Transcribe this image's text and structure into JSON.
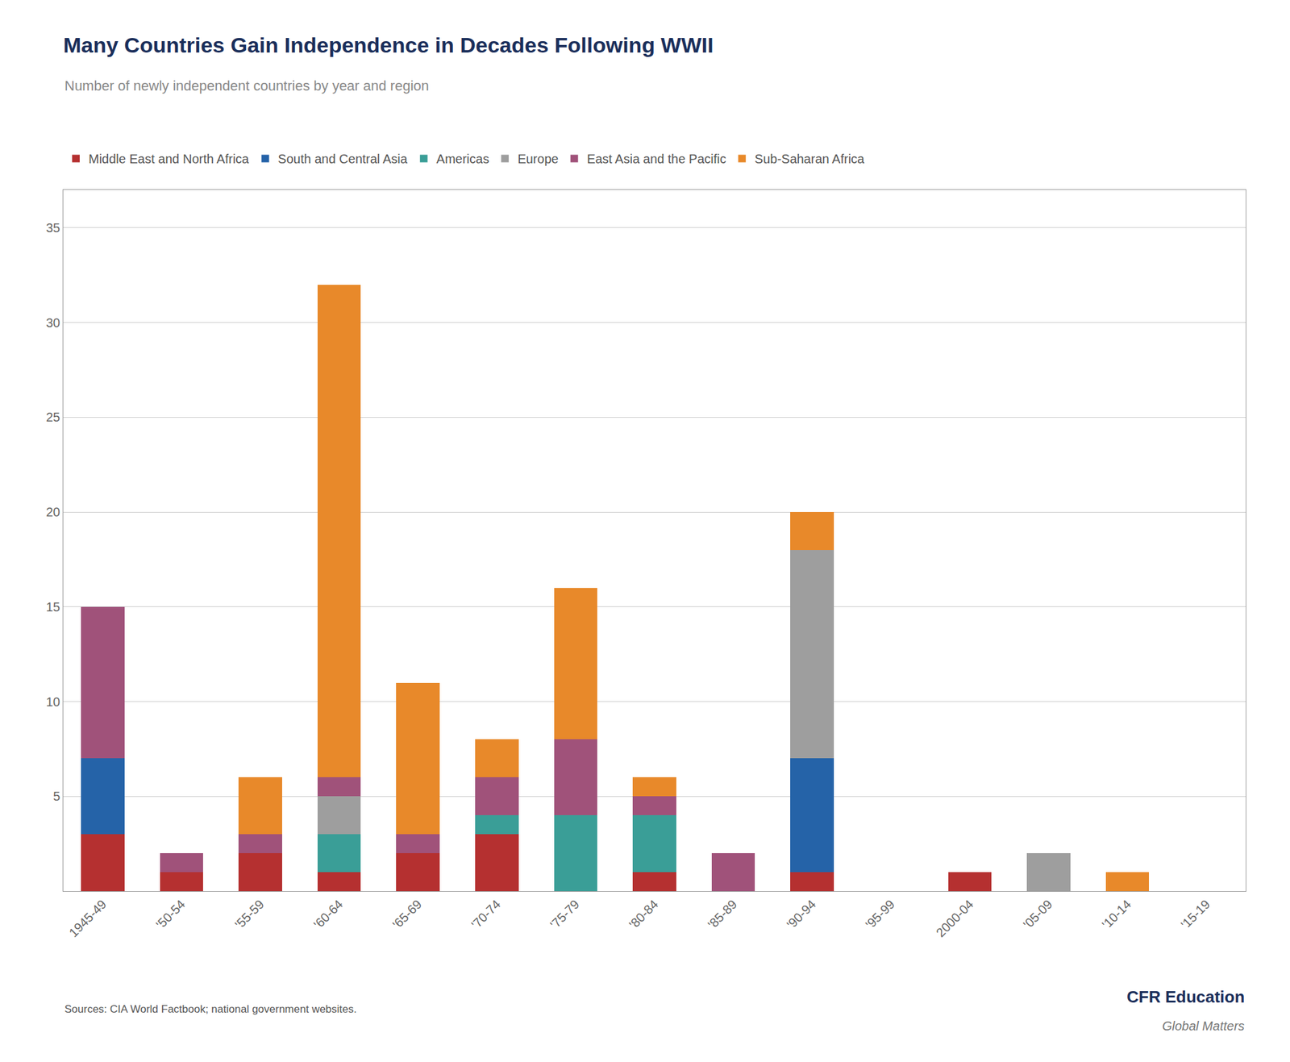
{
  "chart_data": {
    "type": "bar",
    "stacked": true,
    "title": "Many Countries Gain Independence in Decades Following WWII",
    "subtitle": "Number of newly independent countries by year and region",
    "categories": [
      "1945-49",
      "'50-54",
      "'55-59",
      "'60-64",
      "'65-69",
      "'70-74",
      "'75-79",
      "'80-84",
      "'85-89",
      "'90-94",
      "'95-99",
      "2000-04",
      "'05-09",
      "'10-14",
      "'15-19"
    ],
    "series": [
      {
        "name": "Middle East and North Africa",
        "color": "#b53030",
        "values": [
          3,
          1,
          2,
          1,
          2,
          3,
          0,
          1,
          0,
          1,
          0,
          1,
          0,
          0,
          0
        ]
      },
      {
        "name": "South and Central Asia",
        "color": "#2563a8",
        "values": [
          4,
          0,
          0,
          0,
          0,
          0,
          0,
          0,
          0,
          6,
          0,
          0,
          0,
          0,
          0
        ]
      },
      {
        "name": "Americas",
        "color": "#3a9e97",
        "values": [
          0,
          0,
          0,
          2,
          0,
          1,
          4,
          3,
          0,
          0,
          0,
          0,
          0,
          0,
          0
        ]
      },
      {
        "name": "Europe",
        "color": "#9e9e9e",
        "values": [
          0,
          0,
          0,
          2,
          0,
          0,
          0,
          0,
          0,
          11,
          0,
          0,
          2,
          0,
          0
        ]
      },
      {
        "name": "East Asia and the Pacific",
        "color": "#a0527a",
        "values": [
          8,
          1,
          1,
          1,
          1,
          2,
          4,
          1,
          2,
          0,
          0,
          0,
          0,
          0,
          0
        ]
      },
      {
        "name": "Sub-Saharan Africa",
        "color": "#e8892a",
        "values": [
          0,
          0,
          3,
          26,
          8,
          2,
          8,
          1,
          0,
          2,
          0,
          0,
          0,
          1,
          0
        ]
      }
    ],
    "ylim": [
      0,
      37
    ],
    "yticks": [
      5,
      10,
      15,
      20,
      25,
      30,
      35
    ],
    "grid": true,
    "legend": "top",
    "annotations": [
      "Sources: CIA World Factbook; national government websites.",
      "CFR Education",
      "Global Matters"
    ]
  }
}
